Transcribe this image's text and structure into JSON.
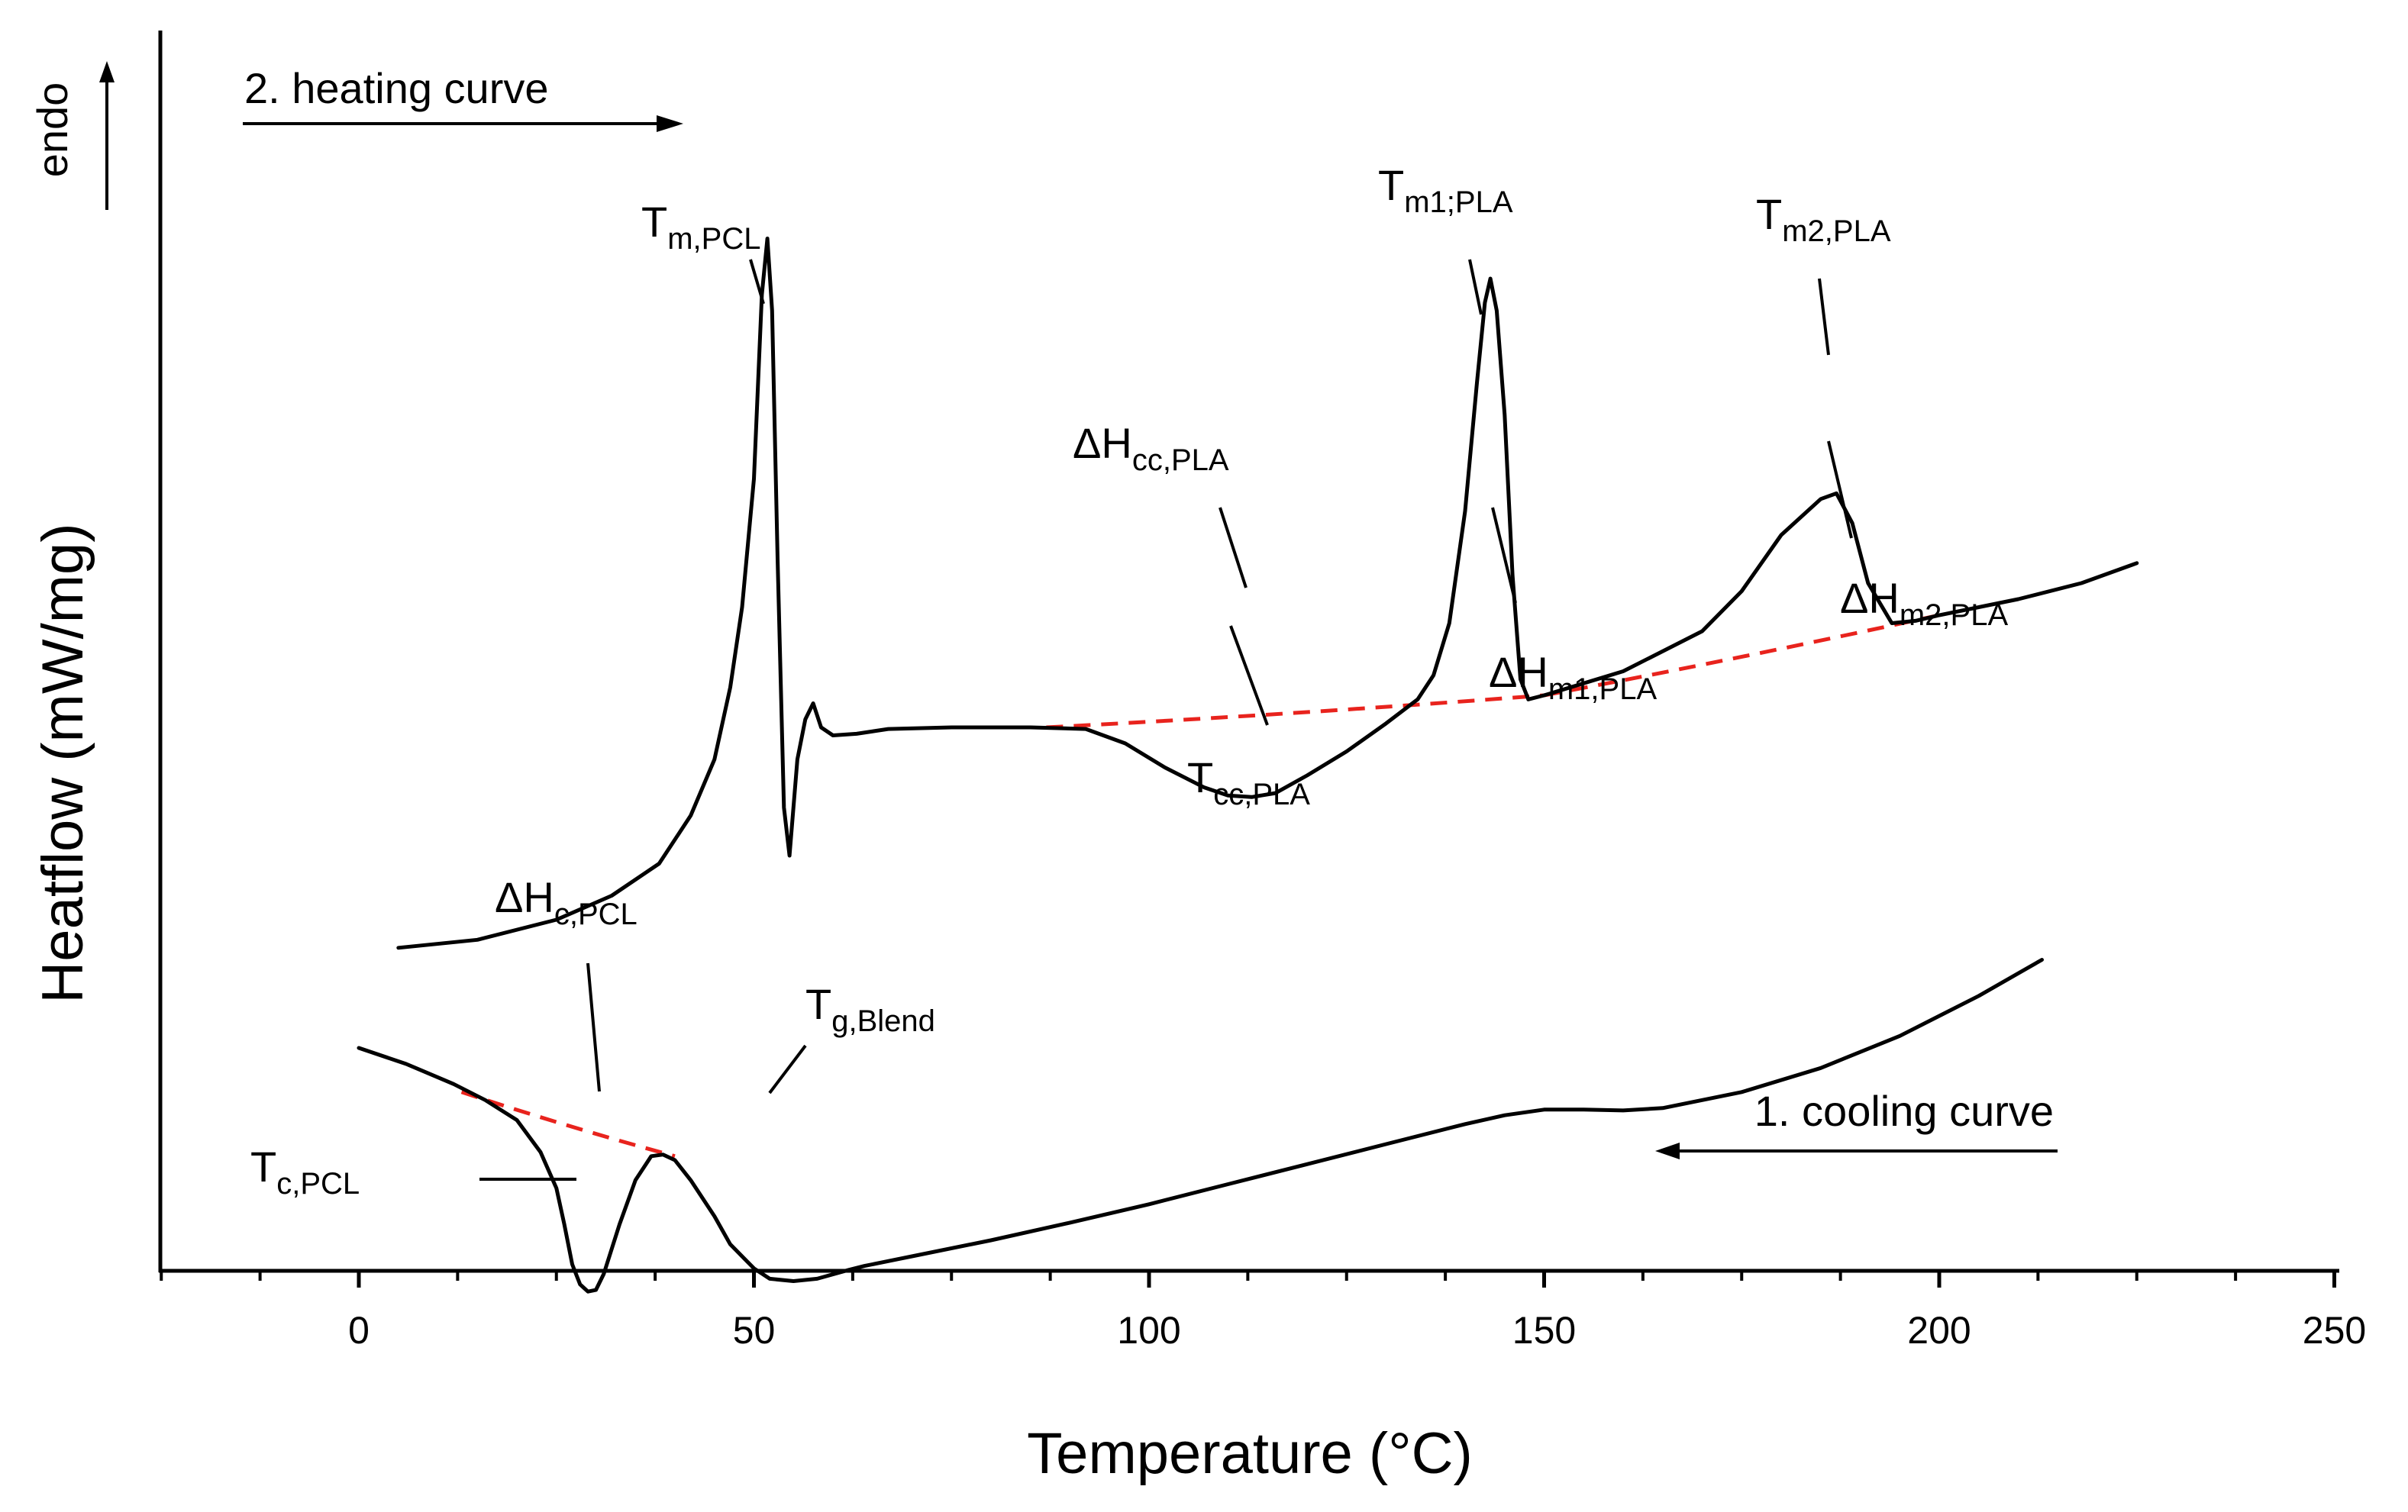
{
  "chart_data": {
    "type": "line",
    "title": "",
    "xlabel": "Temperature (°C)",
    "ylabel": "Heatflow (mW/mg)",
    "xlim": [
      -25,
      250
    ],
    "xticks": [
      0,
      50,
      100,
      150,
      200,
      250
    ],
    "y_direction_label": "endo",
    "series": [
      {
        "name": "2. heating curve",
        "direction": "heating",
        "x": [
          5,
          15,
          25,
          32,
          38,
          42,
          45,
          47,
          48.5,
          50,
          51,
          51.7,
          52.3,
          53,
          53.8,
          54.5,
          55.5,
          56.5,
          57.5,
          58.5,
          60,
          63,
          67,
          75,
          85,
          92,
          97,
          102,
          107,
          110,
          113,
          116,
          120,
          125,
          130,
          134,
          136,
          138,
          140,
          141.5,
          142.5,
          143.2,
          144,
          145,
          146,
          147,
          148,
          150,
          160,
          170,
          175,
          180,
          185,
          187,
          189,
          191,
          194,
          197,
          200,
          210,
          218,
          225
        ],
        "y": [
          46.5,
          47.5,
          50,
          53,
          57,
          63,
          70,
          79,
          89,
          105,
          128,
          135,
          126,
          95,
          64,
          58,
          70,
          75,
          77,
          74,
          73,
          73.2,
          73.8,
          74,
          74,
          73.8,
          72,
          69,
          66.5,
          65.5,
          65.3,
          65.8,
          68,
          71,
          74.5,
          77.5,
          80.5,
          87,
          101,
          117,
          127,
          130,
          126,
          113,
          93,
          80,
          77.5,
          78,
          81,
          86,
          91,
          98,
          102.5,
          103.2,
          99.5,
          92,
          87,
          87.3,
          88,
          90,
          92,
          94.5
        ]
      },
      {
        "name": "1. cooling curve",
        "direction": "cooling",
        "x": [
          213,
          205,
          195,
          185,
          175,
          165,
          160,
          155,
          150,
          145,
          140,
          130,
          120,
          110,
          100,
          90,
          80,
          70,
          64,
          62,
          58,
          55,
          52,
          50,
          47,
          45,
          42,
          40,
          38.5,
          37,
          35,
          33,
          31,
          30,
          29,
          28,
          27,
          26,
          25,
          23,
          20,
          16,
          12,
          6,
          0
        ],
        "y": [
          45,
          40.5,
          35.5,
          31.5,
          28.5,
          26.5,
          26.2,
          26.3,
          26.3,
          25.6,
          24.5,
          22,
          19.5,
          17,
          14.5,
          12.2,
          10,
          8,
          6.8,
          6.3,
          5.2,
          4.9,
          5.2,
          6.5,
          9.5,
          13,
          17.5,
          20,
          20.7,
          20.5,
          17.5,
          12,
          5.8,
          3.8,
          3.6,
          4.5,
          7,
          12,
          16.5,
          21,
          25,
          27.5,
          29.5,
          32,
          34
        ]
      }
    ],
    "baselines": [
      {
        "name": "heating-cc-m1-baseline",
        "x": [
          87,
          150
        ],
        "y": [
          74,
          78
        ]
      },
      {
        "name": "heating-m1-m2-baseline",
        "x": [
          150,
          200
        ],
        "y": [
          78,
          88
        ]
      },
      {
        "name": "cooling-pcl-baseline",
        "x": [
          13,
          40
        ],
        "y": [
          28.5,
          20.5
        ]
      }
    ],
    "annotations": [
      {
        "main": "T",
        "sub": "m,PCL"
      },
      {
        "main": "T",
        "sub": "m1;PLA"
      },
      {
        "main": "T",
        "sub": "m2,PLA"
      },
      {
        "main": "ΔH",
        "sub": "cc,PLA"
      },
      {
        "main": "T",
        "sub": "cc,PLA"
      },
      {
        "main": "ΔH",
        "sub": "m1,PLA"
      },
      {
        "main": "ΔH",
        "sub": "m2,PLA"
      },
      {
        "main": "ΔH",
        "sub": "c,PCL"
      },
      {
        "main": "T",
        "sub": "g,Blend"
      },
      {
        "main": "T",
        "sub": "c,PCL"
      }
    ],
    "arrows": [
      {
        "label": "2. heating curve",
        "direction": "right"
      },
      {
        "label": "1. cooling curve",
        "direction": "left"
      },
      {
        "label": "endo",
        "direction": "up"
      }
    ]
  },
  "colors": {
    "curve": "#000000",
    "baseline": "#e8231d"
  }
}
